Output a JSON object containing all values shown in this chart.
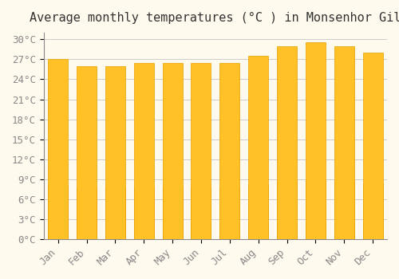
{
  "title": "Average monthly temperatures (°C ) in Monsenhor Gil",
  "months": [
    "Jan",
    "Feb",
    "Mar",
    "Apr",
    "May",
    "Jun",
    "Jul",
    "Aug",
    "Sep",
    "Oct",
    "Nov",
    "Dec"
  ],
  "temperatures": [
    27.0,
    26.0,
    26.0,
    26.5,
    26.5,
    26.5,
    26.5,
    27.5,
    29.0,
    29.5,
    29.0,
    28.0
  ],
  "bar_color_top": "#FFC125",
  "bar_color_bottom": "#FFA500",
  "background_color": "#FFFAEE",
  "grid_color": "#CCCCCC",
  "ylim": [
    0,
    31
  ],
  "yticks": [
    0,
    3,
    6,
    9,
    12,
    15,
    18,
    21,
    24,
    27,
    30
  ],
  "title_fontsize": 11,
  "tick_fontsize": 9,
  "bar_edge_color": "#E8A000"
}
